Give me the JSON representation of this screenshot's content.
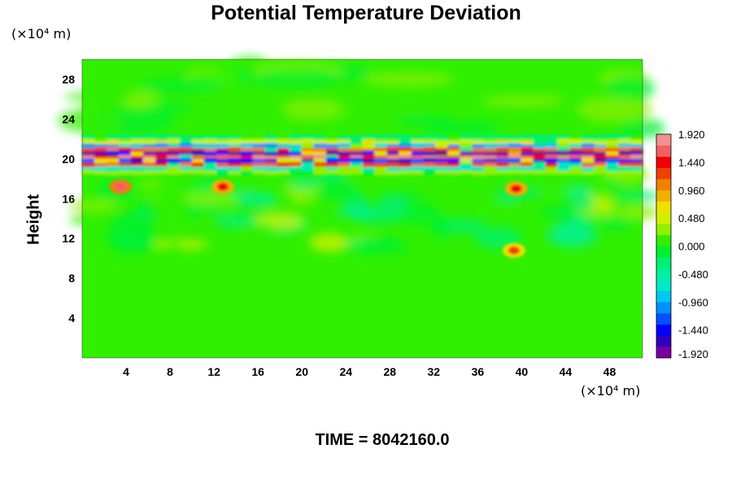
{
  "chart_data": {
    "type": "heatmap",
    "title": "Potential Temperature Deviation",
    "xlabel": "",
    "ylabel": "Height",
    "x_unit": "(×10⁴ m)",
    "y_unit": "(×10⁴ m)",
    "xlim": [
      0,
      51
    ],
    "ylim": [
      0,
      30
    ],
    "x_ticks": [
      4,
      8,
      12,
      16,
      20,
      24,
      28,
      32,
      36,
      40,
      44,
      48
    ],
    "y_ticks": [
      4,
      8,
      12,
      16,
      20,
      24,
      28
    ],
    "colorbar": {
      "range": [
        -1.92,
        1.92
      ],
      "tick_labels": [
        "1.920",
        "1.440",
        "0.960",
        "0.480",
        "0.000",
        "-0.480",
        "-0.960",
        "-1.440",
        "-1.920"
      ],
      "tick_values": [
        1.92,
        1.44,
        0.96,
        0.48,
        0.0,
        -0.48,
        -0.96,
        -1.44,
        -1.92
      ],
      "colors": [
        "#7a00a0",
        "#3000c0",
        "#0000ff",
        "#0050ff",
        "#0090ff",
        "#00c8f0",
        "#00e8c8",
        "#00f0a0",
        "#00f070",
        "#00f030",
        "#30f000",
        "#90f000",
        "#d0f000",
        "#f0e000",
        "#f0b000",
        "#f08000",
        "#f04000",
        "#f00000",
        "#f06060",
        "#f09090"
      ]
    },
    "features": [
      {
        "kind": "band",
        "y_center": 20.4,
        "note": "strong alternating positive/negative layer"
      },
      {
        "kind": "patch",
        "x": 3.5,
        "y": 17.2,
        "value": 1.6
      },
      {
        "kind": "patch",
        "x": 12.8,
        "y": 17.2,
        "value": 1.4
      },
      {
        "kind": "patch",
        "x": 39.5,
        "y": 17.0,
        "value": 1.4
      },
      {
        "kind": "patch",
        "x": 39.3,
        "y": 10.8,
        "value": 1.2
      }
    ]
  },
  "time_label": "TIME = 8042160.0"
}
